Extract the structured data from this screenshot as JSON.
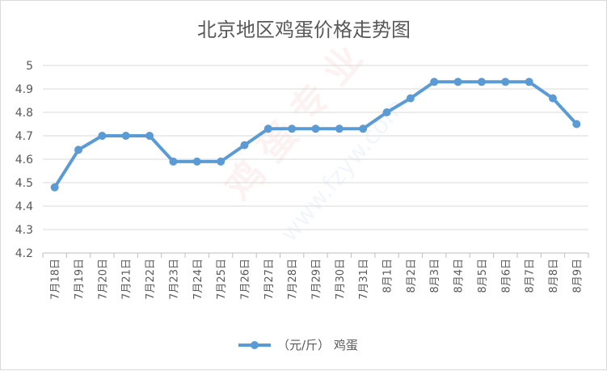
{
  "chart_data": {
    "type": "line",
    "title": "北京地区鸡蛋价格走势图",
    "categories": [
      "7月18日",
      "7月19日",
      "7月20日",
      "7月21日",
      "7月22日",
      "7月23日",
      "7月24日",
      "7月25日",
      "7月26日",
      "7月27日",
      "7月28日",
      "7月29日",
      "7月30日",
      "7月31日",
      "8月1日",
      "8月2日",
      "8月3日",
      "8月4日",
      "8月5日",
      "8月6日",
      "8月7日",
      "8月8日",
      "8月9日"
    ],
    "series": [
      {
        "name": "（元/斤） 鸡蛋",
        "color": "#5b9bd5",
        "values": [
          4.48,
          4.64,
          4.7,
          4.7,
          4.7,
          4.59,
          4.59,
          4.59,
          4.66,
          4.73,
          4.73,
          4.73,
          4.73,
          4.73,
          4.8,
          4.86,
          4.93,
          4.93,
          4.93,
          4.93,
          4.93,
          4.86,
          4.75
        ]
      }
    ],
    "ylim": [
      4.2,
      5.0
    ],
    "yticks": [
      "4.2",
      "4.3",
      "4.4",
      "4.5",
      "4.6",
      "4.7",
      "4.8",
      "4.9",
      "5"
    ],
    "grid": true,
    "legend_position": "bottom"
  }
}
